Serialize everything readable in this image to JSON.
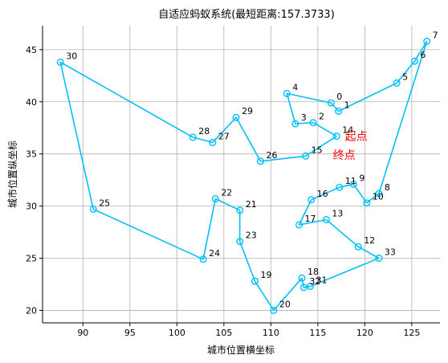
{
  "chart_data": {
    "type": "line",
    "title": "自适应蚂蚁系统(最短距离:157.3733)",
    "xlabel": "城市位置横坐标",
    "ylabel": "城市位置纵坐标",
    "xlim": [
      85.7,
      128.0
    ],
    "ylim": [
      18.8,
      47.3
    ],
    "xticks": [
      90,
      95,
      100,
      105,
      110,
      115,
      120,
      125
    ],
    "yticks": [
      20,
      25,
      30,
      35,
      40,
      45
    ],
    "grid": true,
    "line_color": "#00bfff",
    "annotation_color": "#ff0000",
    "cities": [
      {
        "id": "0",
        "x": 116.4,
        "y": 39.9
      },
      {
        "id": "1",
        "x": 117.2,
        "y": 39.1
      },
      {
        "id": "2",
        "x": 114.5,
        "y": 38.0
      },
      {
        "id": "3",
        "x": 112.6,
        "y": 37.9
      },
      {
        "id": "4",
        "x": 111.7,
        "y": 40.8
      },
      {
        "id": "5",
        "x": 123.4,
        "y": 41.8
      },
      {
        "id": "6",
        "x": 125.3,
        "y": 43.9
      },
      {
        "id": "7",
        "x": 126.6,
        "y": 45.8
      },
      {
        "id": "8",
        "x": 121.5,
        "y": 31.2
      },
      {
        "id": "9",
        "x": 118.8,
        "y": 32.1
      },
      {
        "id": "10",
        "x": 120.2,
        "y": 30.3
      },
      {
        "id": "11",
        "x": 117.3,
        "y": 31.8
      },
      {
        "id": "12",
        "x": 119.3,
        "y": 26.1
      },
      {
        "id": "13",
        "x": 115.9,
        "y": 28.7
      },
      {
        "id": "14",
        "x": 117.0,
        "y": 36.7
      },
      {
        "id": "15",
        "x": 113.7,
        "y": 34.8
      },
      {
        "id": "16",
        "x": 114.3,
        "y": 30.6
      },
      {
        "id": "17",
        "x": 113.0,
        "y": 28.2
      },
      {
        "id": "18",
        "x": 113.3,
        "y": 23.1
      },
      {
        "id": "19",
        "x": 108.3,
        "y": 22.8
      },
      {
        "id": "20",
        "x": 110.3,
        "y": 20.0
      },
      {
        "id": "21",
        "x": 106.7,
        "y": 29.6
      },
      {
        "id": "22",
        "x": 104.1,
        "y": 30.7
      },
      {
        "id": "23",
        "x": 106.7,
        "y": 26.6
      },
      {
        "id": "24",
        "x": 102.8,
        "y": 24.9
      },
      {
        "id": "25",
        "x": 91.1,
        "y": 29.7
      },
      {
        "id": "26",
        "x": 108.9,
        "y": 34.3
      },
      {
        "id": "27",
        "x": 103.8,
        "y": 36.1
      },
      {
        "id": "28",
        "x": 101.7,
        "y": 36.6
      },
      {
        "id": "29",
        "x": 106.3,
        "y": 38.5
      },
      {
        "id": "30",
        "x": 87.6,
        "y": 43.8
      },
      {
        "id": "31",
        "x": 114.2,
        "y": 22.3
      },
      {
        "id": "32",
        "x": 113.5,
        "y": 22.2
      },
      {
        "id": "33",
        "x": 121.5,
        "y": 25.0
      }
    ],
    "route": [
      "14",
      "2",
      "3",
      "4",
      "0",
      "1",
      "5",
      "6",
      "7",
      "8",
      "10",
      "9",
      "11",
      "16",
      "17",
      "13",
      "12",
      "33",
      "31",
      "32",
      "18",
      "20",
      "19",
      "23",
      "21",
      "22",
      "24",
      "25",
      "30",
      "28",
      "27",
      "29",
      "26",
      "15",
      "14"
    ],
    "annotations": {
      "start": {
        "text": "起点",
        "x": 117.9,
        "y": 36.7
      },
      "end": {
        "text": "终点",
        "x": 116.6,
        "y": 34.9
      }
    }
  }
}
